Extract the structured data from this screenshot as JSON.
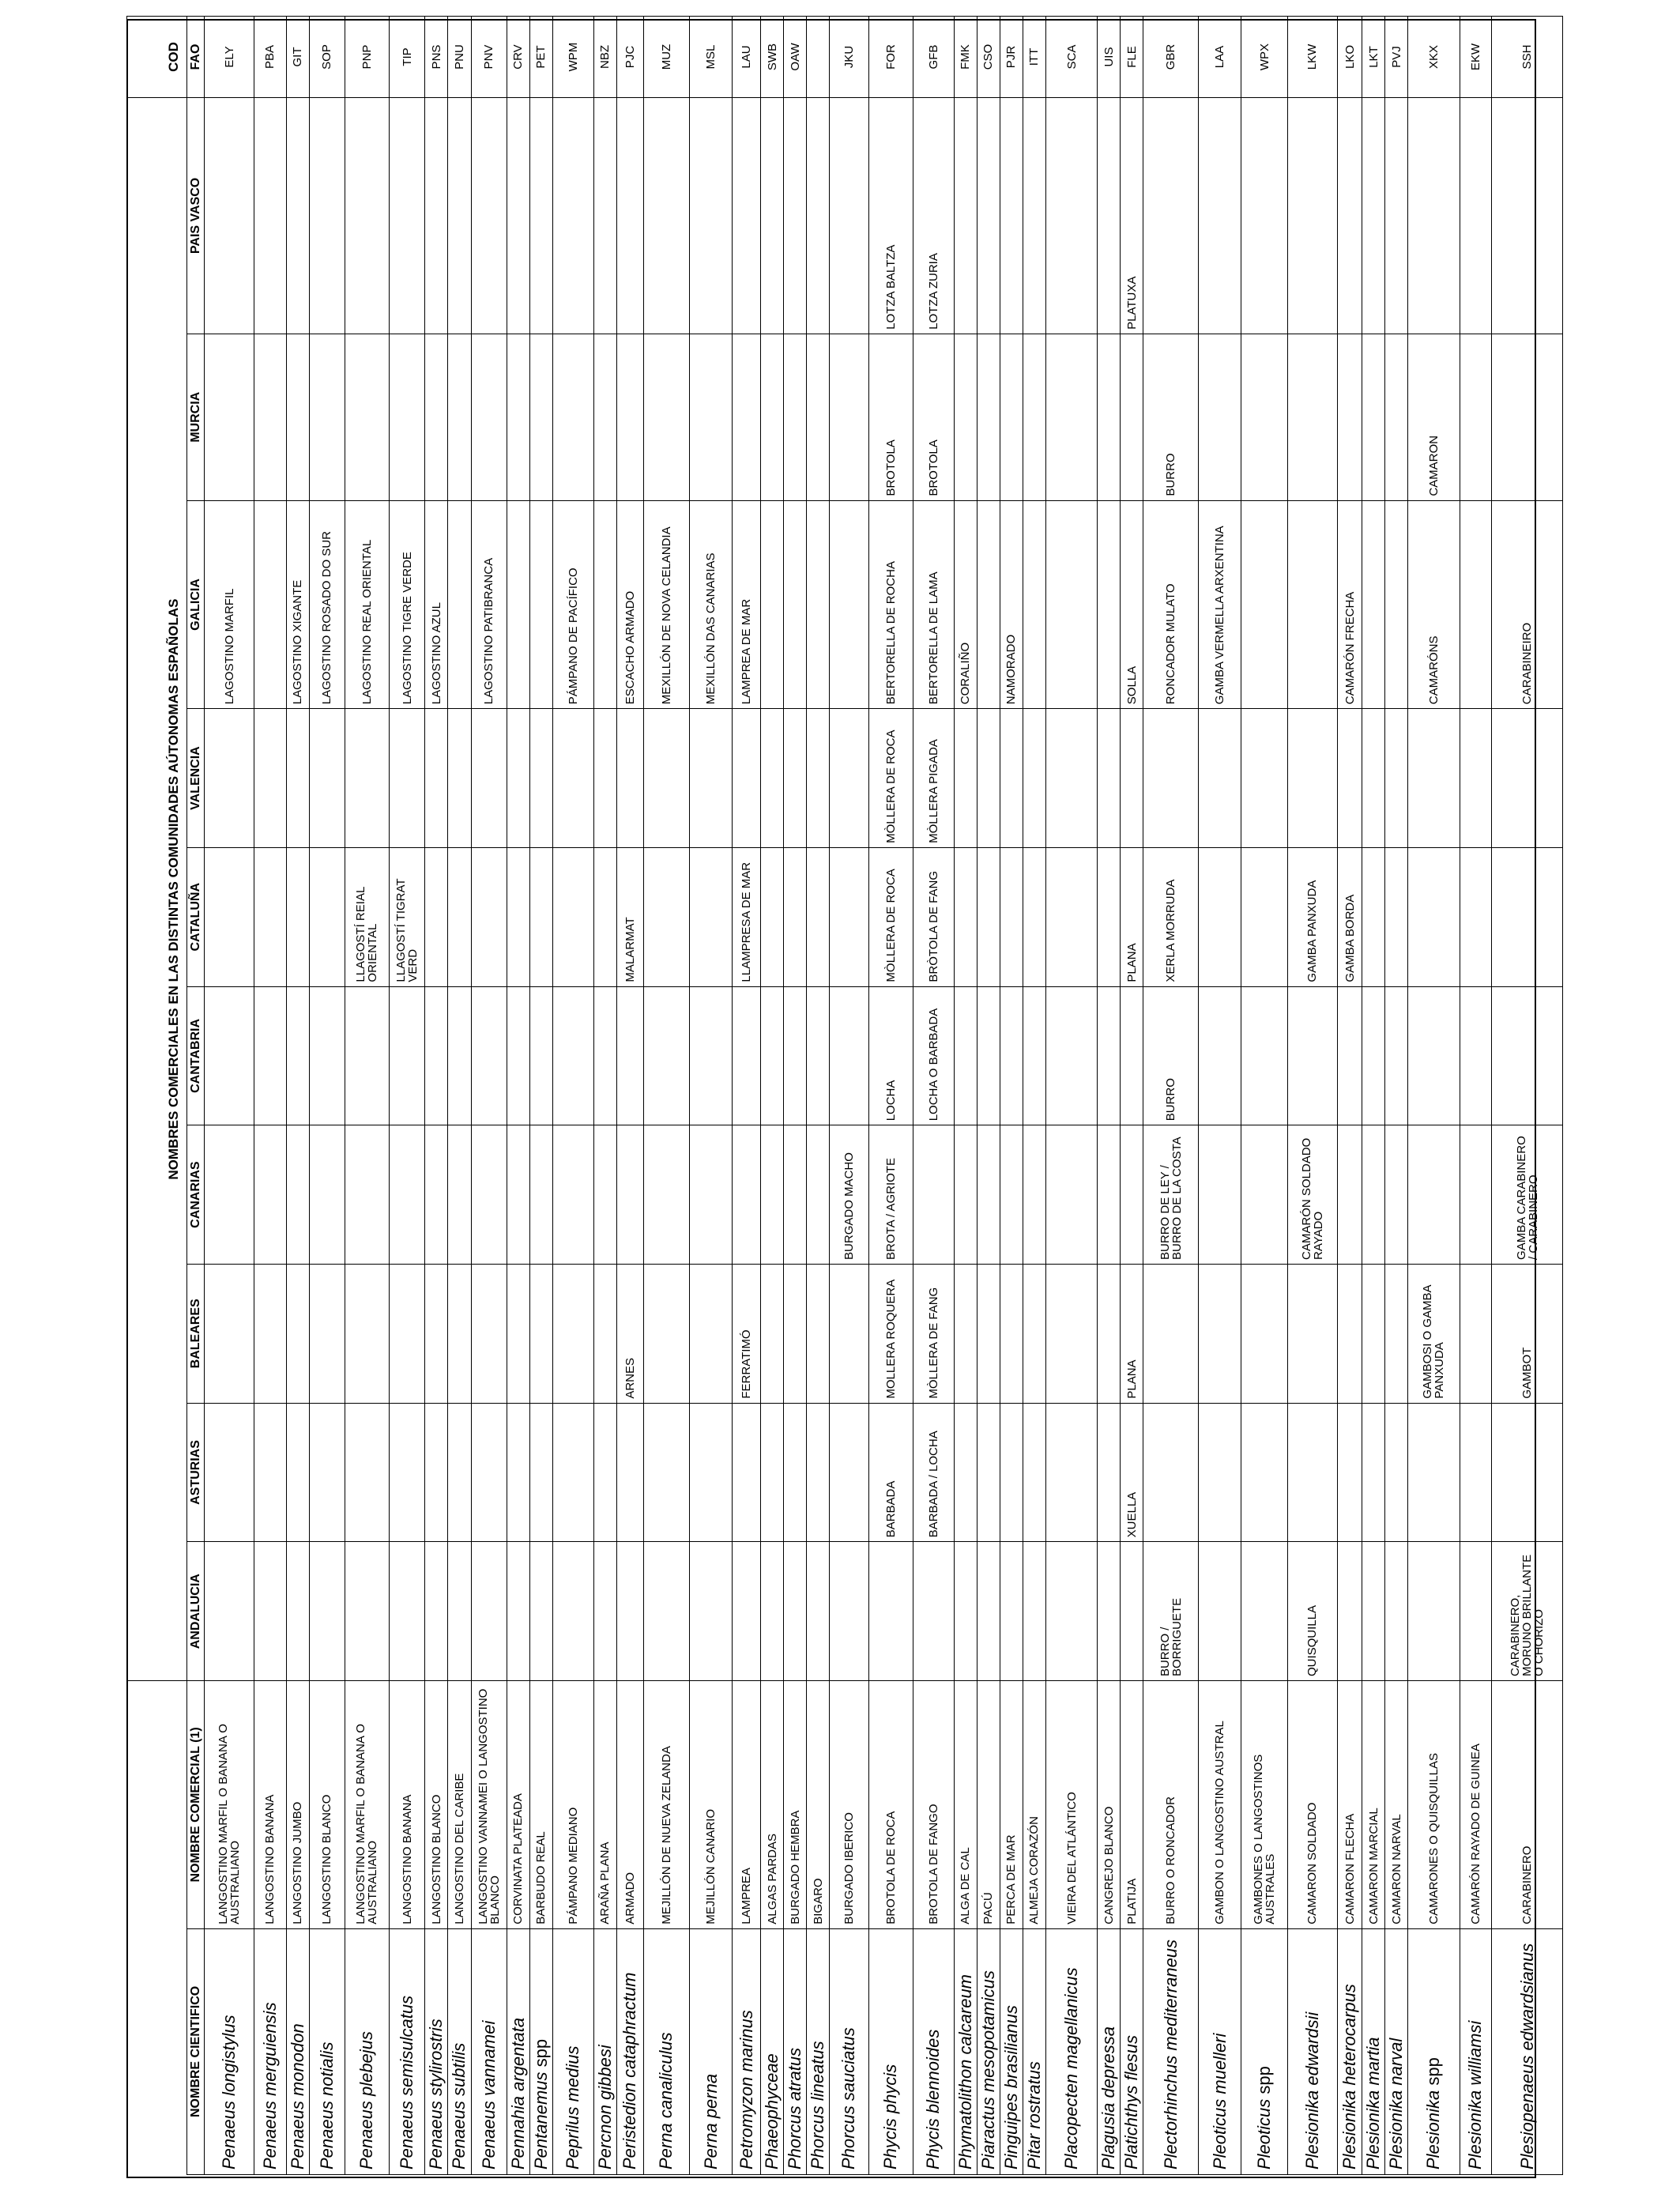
{
  "header": {
    "group_title": "NOMBRES COMERCIALES EN LAS DISTINTAS COMUNIDADES AÚTONOMAS ESPAÑOLAS",
    "cod_title": "COD",
    "columns": [
      "NOMBRE CIENTIFICO",
      "NOMBRE COMERCIAL (1)",
      "ANDALUCIA",
      "ASTURIAS",
      "BALEARES",
      "CANARIAS",
      "CANTABRIA",
      "CATALUÑA",
      "VALENCIA",
      "GALICIA",
      "MURCIA",
      "PAIS VASCO",
      "FAO"
    ]
  },
  "rows": [
    {
      "h": 56,
      "cells": [
        "Penaeus longistylus",
        "LANGOSTINO MARFIL O BANANA O AUSTRALIANO",
        "",
        "",
        "",
        "",
        "",
        "",
        "",
        "LAGOSTINO MARFIL",
        "",
        "",
        "ELY"
      ]
    },
    {
      "h": 36,
      "cells": [
        "Penaeus merguiensis",
        "LANGOSTINO BANANA",
        "",
        "",
        "",
        "",
        "",
        "",
        "",
        "",
        "",
        "",
        "PBA"
      ]
    },
    {
      "h": 26,
      "cells": [
        "Penaeus monodon",
        "LANGOSTINO JUMBO",
        "",
        "",
        "",
        "",
        "",
        "",
        "",
        "LAGOSTINO XIGANTE",
        "",
        "",
        "GIT"
      ]
    },
    {
      "h": 40,
      "cells": [
        "Penaeus notialis",
        "LANGOSTINO BLANCO",
        "",
        "",
        "",
        "",
        "",
        "",
        "",
        "LAGOSTINO ROSADO DO SUR",
        "",
        "",
        "SOP"
      ]
    },
    {
      "h": 50,
      "cells": [
        "Penaeus plebejus",
        "LANGOSTINO MARFIL O BANANA O AUSTRALIANO",
        "",
        "",
        "",
        "",
        "",
        "LLAGOSTÍ REIAL ORIENTAL",
        "",
        "LAGOSTINO REAL ORIENTAL",
        "",
        "",
        "PNP"
      ]
    },
    {
      "h": 40,
      "cells": [
        "Penaeus semisulcatus",
        "LANGOSTINO BANANA",
        "",
        "",
        "",
        "",
        "",
        "LLAGOSTÍ TIGRAT VERD",
        "",
        "LAGOSTINO TIGRE VERDE",
        "",
        "",
        "TIP"
      ]
    },
    {
      "h": 26,
      "cells": [
        "Penaeus stylirostris",
        "LANGOSTINO BLANCO",
        "",
        "",
        "",
        "",
        "",
        "",
        "",
        "LAGOSTINO AZUL",
        "",
        "",
        "PNS"
      ]
    },
    {
      "h": 26,
      "cells": [
        "Penaeus subtilis",
        "LANGOSTINO DEL CARIBE",
        "",
        "",
        "",
        "",
        "",
        "",
        "",
        "",
        "",
        "",
        "PNU"
      ]
    },
    {
      "h": 40,
      "cells": [
        "Penaeus vannamei",
        "LANGOSTINO VANNAMEI O LANGOSTINO BLANCO",
        "",
        "",
        "",
        "",
        "",
        "",
        "",
        "LAGOSTINO PATIBRANCA",
        "",
        "",
        "PNV"
      ]
    },
    {
      "h": 26,
      "cells": [
        "Pennahia argentata",
        "CORVINATA PLATEADA",
        "",
        "",
        "",
        "",
        "",
        "",
        "",
        "",
        "",
        "",
        "CRV"
      ]
    },
    {
      "h": 26,
      "cells": [
        "Pentanemus spp",
        "BARBUDO REAL",
        "",
        "",
        "",
        "",
        "",
        "",
        "",
        "",
        "",
        "",
        "PET"
      ]
    },
    {
      "h": 46,
      "cells": [
        "Peprilus medius",
        "PÁMPANO MEDIANO",
        "",
        "",
        "",
        "",
        "",
        "",
        "",
        "PÁMPANO DE PACÍFICO",
        "",
        "",
        "WPM"
      ]
    },
    {
      "h": 24,
      "cells": [
        "Percnon gibbesi",
        "ARAÑA PLANA",
        "",
        "",
        "",
        "",
        "",
        "",
        "",
        "",
        "",
        "",
        "NBZ"
      ]
    },
    {
      "h": 30,
      "cells": [
        "Peristedion cataphractum",
        "ARMADO",
        "",
        "",
        "ARNES",
        "",
        "",
        "MALARMAT",
        "",
        "ESCACHO ARMADO",
        "",
        "",
        "PJC"
      ]
    },
    {
      "h": 52,
      "cells": [
        "Perna canaliculus",
        "MEJILLÓN DE NUEVA ZELANDA",
        "",
        "",
        "",
        "",
        "",
        "",
        "",
        "MEXILLÓN DE NOVA CELANDIA",
        "",
        "",
        "MUZ"
      ]
    },
    {
      "h": 48,
      "cells": [
        "Perna perna",
        "MEJILLÓN CANARIO",
        "",
        "",
        "",
        "",
        "",
        "",
        "",
        "MEXILLÓN DAS CANARIAS",
        "",
        "",
        "MSL"
      ]
    },
    {
      "h": 32,
      "cells": [
        "Petromyzon marinus",
        "LAMPREA",
        "",
        "",
        "FERRATIMÓ",
        "",
        "",
        "LLAMPRESA DE MAR",
        "",
        "LAMPREA DE MAR",
        "",
        "",
        "LAU"
      ]
    },
    {
      "h": 22,
      "cells": [
        "Phaeophyceae",
        "ALGAS PARDAS",
        "",
        "",
        "",
        "",
        "",
        "",
        "",
        "",
        "",
        "",
        "SWB"
      ]
    },
    {
      "h": 22,
      "cells": [
        "Phorcus atratus",
        "BURGADO HEMBRA",
        "",
        "",
        "",
        "",
        "",
        "",
        "",
        "",
        "",
        "",
        "OAW"
      ]
    },
    {
      "h": 24,
      "cells": [
        "Phorcus lineatus",
        "BIGARO",
        "",
        "",
        "",
        "",
        "",
        "",
        "",
        "",
        "",
        "",
        ""
      ]
    },
    {
      "h": 44,
      "cells": [
        "Phorcus sauciatus",
        "BURGADO IBERICO",
        "",
        "",
        "",
        "BURGADO MACHO",
        "",
        "",
        "",
        "",
        "",
        "",
        "JKU"
      ]
    },
    {
      "h": 50,
      "cells": [
        "Phycis phycis",
        "BROTOLA DE ROCA",
        "",
        "BARBADA",
        "MOLLERA ROQUERA",
        "BROTA / AGRIOTE",
        "LOCHA",
        "MÒLLERA DE ROCA",
        "MÒLLERA DE ROCA",
        "BERTORELLA DE ROCHA",
        "BROTOLA",
        "LOTZA BALTZA",
        "FOR"
      ]
    },
    {
      "h": 46,
      "cells": [
        "Phycis blennoides",
        "BROTOLA DE FANGO",
        "",
        "BARBADA / LOCHA",
        "MÒLLERA DE FANG",
        "",
        "LOCHA O BARBADA",
        "BRÒTOLA DE FANG",
        "MÒLLERA PIGADA",
        "BERTORELLA DE LAMA",
        "BROTOLA",
        "LOTZA ZURIA",
        "GFB"
      ]
    },
    {
      "h": 26,
      "cells": [
        "Phymatolithon calcareum",
        "ALGA DE CAL",
        "",
        "",
        "",
        "",
        "",
        "",
        "",
        "CORALIÑO",
        "",
        "",
        "FMK"
      ]
    },
    {
      "h": 22,
      "cells": [
        "Piaractus mesopotamicus",
        "PACÚ",
        "",
        "",
        "",
        "",
        "",
        "",
        "",
        "",
        "",
        "",
        "CSO"
      ]
    },
    {
      "h": 24,
      "cells": [
        "Pinguipes brasilianus",
        "PERCA DE MAR",
        "",
        "",
        "",
        "",
        "",
        "",
        "",
        "NAMORADO",
        "",
        "",
        "PJR"
      ]
    },
    {
      "h": 24,
      "cells": [
        "Pitar rostratus",
        "ALMEJA CORAZÓN",
        "",
        "",
        "",
        "",
        "",
        "",
        "",
        "",
        "",
        "",
        "ITT"
      ]
    },
    {
      "h": 58,
      "cells": [
        "Placopecten magellanicus",
        "VIEIRA DEL ATLÁNTICO",
        "",
        "",
        "",
        "",
        "",
        "",
        "",
        "",
        "",
        "",
        "SCA"
      ]
    },
    {
      "h": 26,
      "cells": [
        "Plagusia depressa",
        "CANGREJO BLANCO",
        "",
        "",
        "",
        "",
        "",
        "",
        "",
        "",
        "",
        "",
        "UIS"
      ]
    },
    {
      "h": 22,
      "cells": [
        "Platichthys flesus",
        "PLATIJA",
        "",
        "XUELLA",
        "PLANA",
        "",
        "",
        "PLANA",
        "",
        "SOLLA",
        "",
        "PLATUXA",
        "FLE"
      ]
    },
    {
      "h": 62,
      "cells": [
        "Plectorhinchus mediterraneus",
        "BURRO O RONCADOR",
        "BURRO / BORRIGUETE",
        "",
        "",
        "BURRO DE LEY / BURRO DE LA COSTA",
        "BURRO",
        "XERLA MORRUDA",
        "",
        "RONCADOR MULATO",
        "BURRO",
        "",
        "GBR"
      ]
    },
    {
      "h": 48,
      "cells": [
        "Pleoticus muelleri",
        "GAMBON O LANGOSTINO AUSTRAL",
        "",
        "",
        "",
        "",
        "",
        "",
        "",
        "GAMBA VERMELLA ARXENTINA",
        "",
        "",
        "LAA"
      ]
    },
    {
      "h": 52,
      "cells": [
        "Pleoticus spp",
        "GAMBONES O LANGOSTINOS AUSTRALES",
        "",
        "",
        "",
        "",
        "",
        "",
        "",
        "",
        "",
        "",
        "WPX"
      ]
    },
    {
      "h": 56,
      "cells": [
        "Plesionika edwardsii",
        "CAMARON SOLDADO",
        "QUISQUILLA",
        "",
        "",
        "CAMARÓN SOLDADO RAYADO",
        "",
        "GAMBA PANXUDA",
        "",
        "",
        "",
        "",
        "LKW"
      ]
    },
    {
      "h": 28,
      "cells": [
        "Plesionika heterocarpus",
        "CAMARON FLECHA",
        "",
        "",
        "",
        "",
        "",
        "GAMBA BORDA",
        "",
        "CAMARÓN FRECHA",
        "",
        "",
        "LKO"
      ]
    },
    {
      "h": 22,
      "cells": [
        "Plesionika martia",
        "CAMARON MARCIAL",
        "",
        "",
        "",
        "",
        "",
        "",
        "",
        "",
        "",
        "",
        "LKT"
      ]
    },
    {
      "h": 22,
      "cells": [
        "Plesionika narval",
        "CAMARON NARVAL",
        "",
        "",
        "",
        "",
        "",
        "",
        "",
        "",
        "",
        "",
        "PVJ"
      ]
    },
    {
      "h": 58,
      "cells": [
        "Plesionika spp",
        "CAMARONES O QUISQUILLAS",
        "",
        "",
        "GAMBOSI O GAMBA PANXUDA",
        "",
        "",
        "",
        "",
        "CAMARÓNS",
        "CAMARON",
        "",
        "XKX"
      ]
    },
    {
      "h": 36,
      "cells": [
        "Plesionika williamsi",
        "CAMARÓN RAYADO DE GUINEA",
        "",
        "",
        "",
        "",
        "",
        "",
        "",
        "",
        "",
        "",
        "EKW"
      ]
    },
    {
      "h": 80,
      "cells": [
        "Plesiopenaeus edwardsianus",
        "CARABINERO",
        "CARABINERO, MORUNO BRILLANTE O CHORIZO",
        "",
        "GAMBOT",
        "GAMBA CARABINERO / CARABINERO",
        "",
        "",
        "",
        "CARABINEIRO",
        "",
        "",
        "SSH"
      ]
    }
  ]
}
